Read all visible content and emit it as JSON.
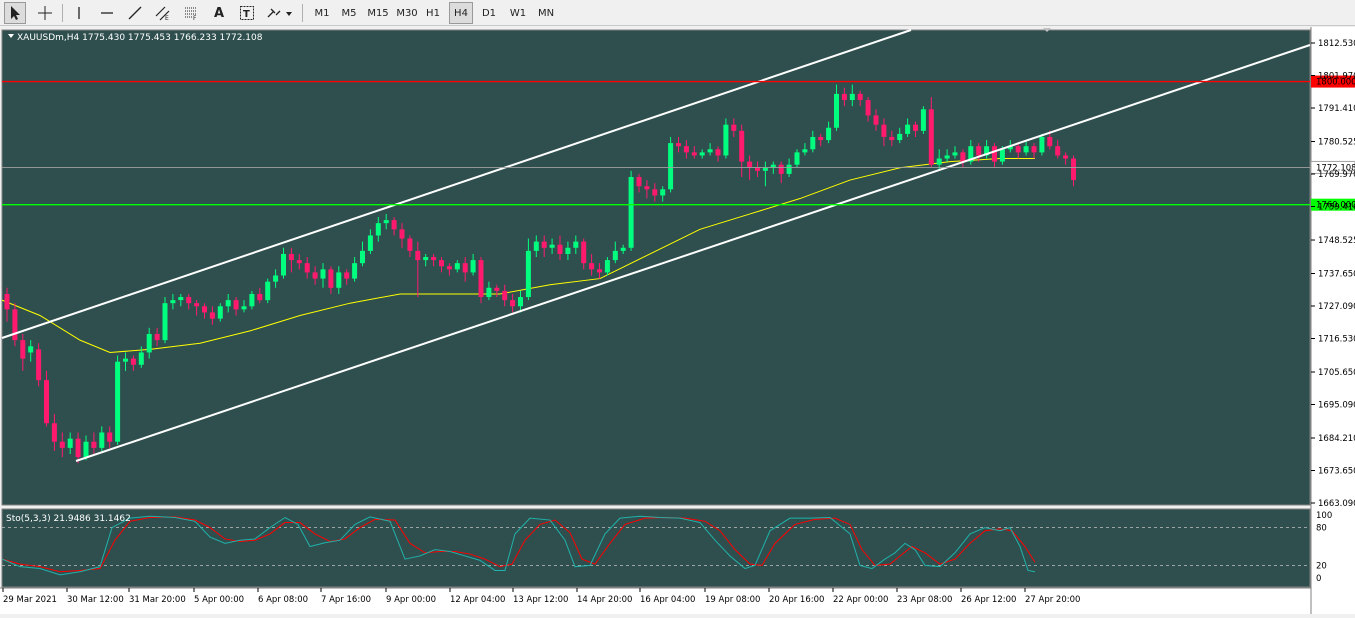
{
  "toolbar": {
    "tools": [
      {
        "name": "cursor-tool",
        "icon": "arrow-cursor-icon"
      },
      {
        "name": "crosshair-tool",
        "icon": "crosshair-icon"
      },
      {
        "name": "vertical-line-tool",
        "icon": "vertical-line-icon"
      },
      {
        "name": "horizontal-line-tool",
        "icon": "horizontal-line-icon"
      },
      {
        "name": "trendline-tool",
        "icon": "trendline-icon"
      },
      {
        "name": "equidistant-channel-tool",
        "icon": "channel-icon"
      },
      {
        "name": "fibonacci-tool",
        "icon": "fibonacci-icon"
      },
      {
        "name": "text-tool",
        "label": "A",
        "icon": "text-icon"
      },
      {
        "name": "text-label-tool",
        "label": "T",
        "icon": "text-label-icon"
      },
      {
        "name": "arrows-tool",
        "icon": "arrow-shapes-icon"
      }
    ],
    "timeframes": [
      "M1",
      "M5",
      "M15",
      "M30",
      "H1",
      "H4",
      "D1",
      "W1",
      "MN"
    ],
    "active_timeframe": "H4"
  },
  "chart_header": {
    "symbol_info": "XAUUSDm,H4  1775.430 1775.453 1766.233 1772.108"
  },
  "indicator_header": {
    "label": "Sto(5,3,3) 21.9486 31.1462"
  },
  "colors": {
    "background": "#2f4f4f",
    "bull_candle": "#00ff7f",
    "bear_candle": "#ff1a6e",
    "ma": "#ffff00",
    "resistance_line": "#ff0000",
    "support_line": "#00ff00",
    "channel": "#ffffff",
    "stoch_main": "#20b2aa",
    "stoch_signal": "#ff0000"
  },
  "chart_data": {
    "type": "candlestick",
    "price_axis_ticks": [
      "1812.530",
      "1801.970",
      "1791.410",
      "1780.525",
      "1769.970",
      "1759.410",
      "1748.525",
      "1737.650",
      "1727.090",
      "1716.530",
      "1705.650",
      "1695.090",
      "1684.210",
      "1673.650",
      "1663.090"
    ],
    "current_price_label": "1772.108",
    "horizontal_levels": [
      {
        "label": "1800.000",
        "value": 1800.0,
        "color": "#ff0000"
      },
      {
        "label": "1760.000",
        "value": 1760.0,
        "color": "#00ff00"
      }
    ],
    "time_axis_labels": [
      "29 Mar 2021",
      "30 Mar 12:00",
      "31 Mar 20:00",
      "5 Apr 00:00",
      "6 Apr 08:00",
      "7 Apr 16:00",
      "9 Apr 00:00",
      "12 Apr 04:00",
      "13 Apr 12:00",
      "14 Apr 20:00",
      "16 Apr 04:00",
      "19 Apr 08:00",
      "20 Apr 16:00",
      "22 Apr 00:00",
      "23 Apr 08:00",
      "26 Apr 12:00",
      "27 Apr 20:00"
    ],
    "stoch_levels": {
      "top": "100",
      "upper": "80",
      "lower": "20",
      "bottom": "0"
    },
    "stoch_level_values": [
      100,
      80,
      20,
      0
    ]
  }
}
